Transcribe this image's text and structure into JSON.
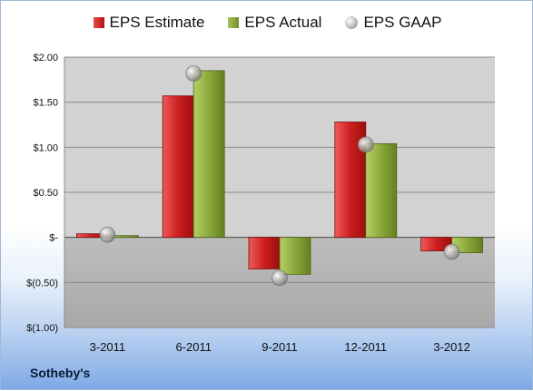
{
  "chart_data": {
    "type": "bar",
    "categories": [
      "3-2011",
      "6-2011",
      "9-2011",
      "12-2011",
      "3-2012"
    ],
    "series": [
      {
        "name": "EPS Estimate",
        "values": [
          0.04,
          1.57,
          -0.35,
          1.28,
          -0.15
        ],
        "color": "#c51f1f"
      },
      {
        "name": "EPS Actual",
        "values": [
          0.02,
          1.85,
          -0.41,
          1.04,
          -0.17
        ],
        "color": "#8aa83b"
      },
      {
        "name": "EPS GAAP",
        "values": [
          0.03,
          1.82,
          -0.45,
          1.03,
          -0.16
        ],
        "color": "#a9a9a9",
        "marker": "sphere"
      }
    ],
    "ylim": [
      -1.0,
      2.0
    ],
    "yticks": [
      2.0,
      1.5,
      1.0,
      0.5,
      0.0,
      -0.5,
      -1.0
    ],
    "ytick_labels": [
      "$2.00",
      "$1.50",
      "$1.00",
      "$0.50",
      "$-",
      "$(0.50)",
      "$(1.00)"
    ],
    "legend": "top",
    "grid": true,
    "xlabel": "",
    "ylabel": ""
  },
  "company_label": "Sotheby's"
}
